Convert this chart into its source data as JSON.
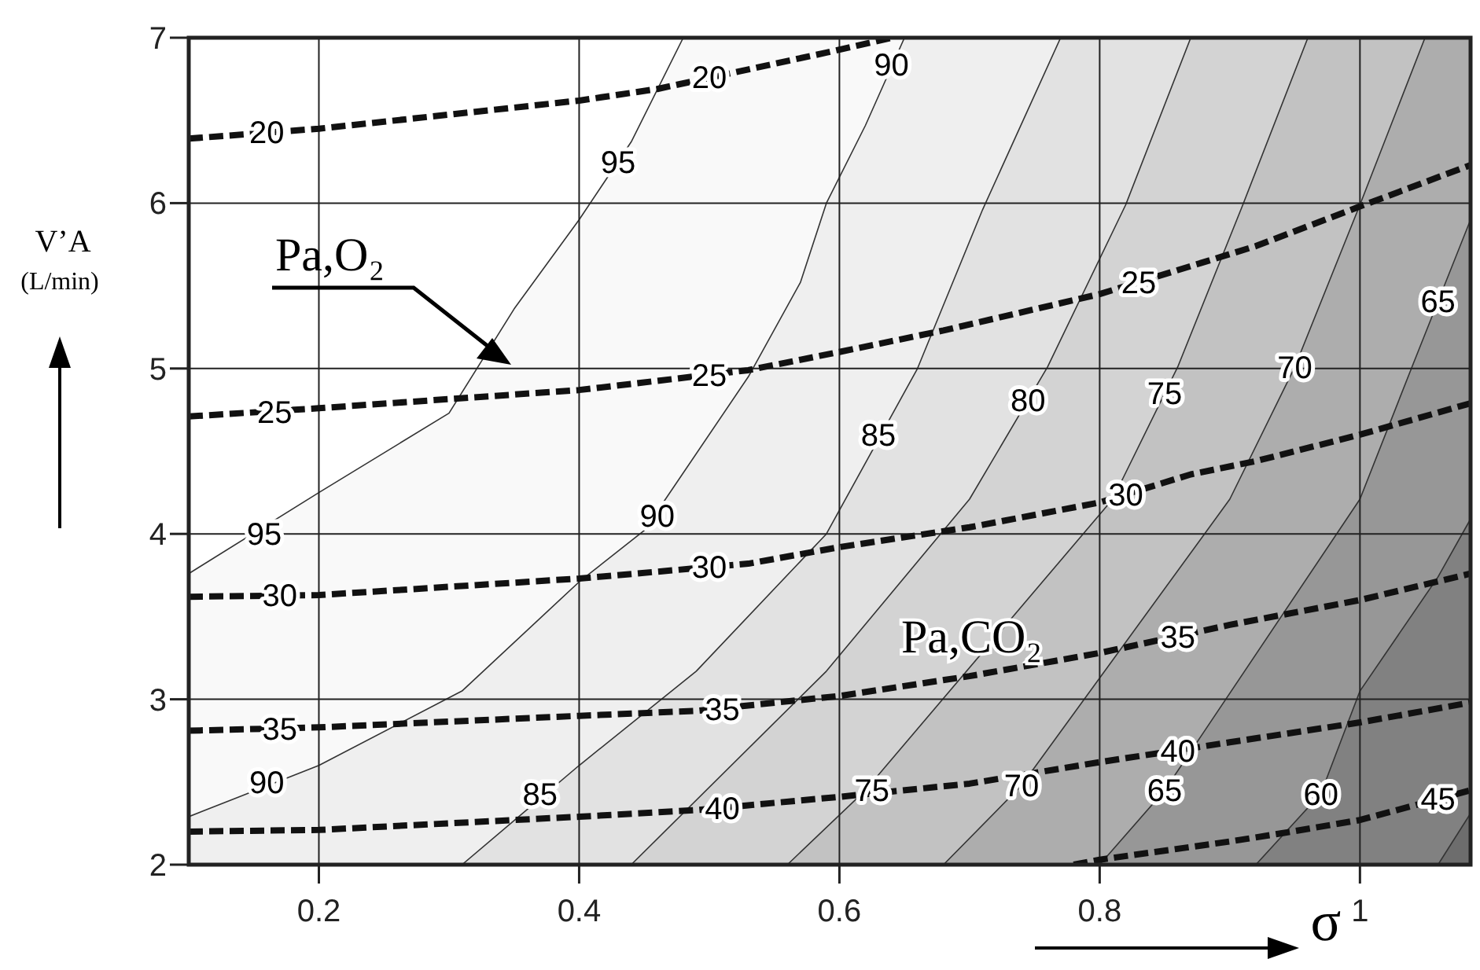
{
  "chart_data": {
    "type": "line",
    "xlabel": "σ",
    "ylabel": "V’A (L/min)",
    "xlim": [
      0.1,
      1.085
    ],
    "ylim": [
      2,
      7
    ],
    "xticks": [
      {
        "value": 0.2,
        "label": "0.2"
      },
      {
        "value": 0.4,
        "label": "0.4"
      },
      {
        "value": 0.6,
        "label": "0.6"
      },
      {
        "value": 0.8,
        "label": "0.8"
      },
      1
    ],
    "yticks": [
      2,
      3,
      4,
      5,
      6,
      7
    ],
    "grid": true,
    "series": [
      {
        "color": "#333333",
        "line_style": "solid",
        "x": [
          0.1,
          0.2,
          0.3,
          0.35,
          0.4,
          0.44,
          0.48
        ],
        "values": [
          3.76,
          4.25,
          4.73,
          5.36,
          5.9,
          6.37,
          7
        ]
      },
      {
        "color": "#333333",
        "line_style": "solid",
        "x": [
          0.1,
          0.2,
          0.31,
          0.4,
          0.45,
          0.53,
          0.57,
          0.59,
          0.62,
          0.65
        ],
        "values": [
          2.29,
          2.6,
          3.05,
          3.71,
          4.02,
          4.95,
          5.52,
          6.0,
          6.47,
          7
        ]
      },
      {
        "color": "#333333",
        "line_style": "solid",
        "x": [
          0.31,
          0.4,
          0.49,
          0.59,
          0.66,
          0.71,
          0.77
        ],
        "values": [
          2,
          2.6,
          3.17,
          4.0,
          5.0,
          5.96,
          7
        ]
      },
      {
        "color": "#333333",
        "line_style": "solid",
        "x": [
          0.44,
          0.59,
          0.7,
          0.76,
          0.82,
          0.87
        ],
        "values": [
          2,
          3.17,
          4.21,
          5.01,
          5.99,
          7
        ]
      },
      {
        "color": "#333333",
        "line_style": "solid",
        "x": [
          0.56,
          0.62,
          0.81,
          0.86,
          0.91,
          0.96
        ],
        "values": [
          2,
          2.45,
          4.21,
          5.01,
          5.99,
          7
        ]
      },
      {
        "color": "#333333",
        "line_style": "solid",
        "x": [
          0.68,
          0.74,
          0.9,
          0.95,
          1.0,
          1.05
        ],
        "values": [
          2,
          2.48,
          4.21,
          5.01,
          5.99,
          7
        ]
      },
      {
        "color": "#333333",
        "line_style": "solid",
        "x": [
          0.8,
          0.85,
          1.0,
          1.04,
          1.085
        ],
        "values": [
          2,
          2.45,
          4.21,
          5.01,
          5.9
        ]
      },
      {
        "color": "#333333",
        "line_style": "solid",
        "x": [
          0.92,
          0.97,
          1.0,
          1.06,
          1.085
        ],
        "values": [
          2,
          2.43,
          3.05,
          3.74,
          4.09
        ]
      },
      {
        "color": "#333333",
        "line_style": "solid",
        "x": [
          1.06,
          1.085
        ],
        "values": [
          2,
          2.31
        ]
      },
      {
        "color": "#111111",
        "line_style": "dashed",
        "x": [
          0.1,
          0.2,
          0.4,
          0.46,
          0.59,
          0.64
        ],
        "values": [
          6.39,
          6.45,
          6.62,
          6.69,
          6.91,
          7.0
        ]
      },
      {
        "color": "#111111",
        "line_style": "dashed",
        "x": [
          0.1,
          0.2,
          0.4,
          0.53,
          0.6,
          0.68,
          0.8,
          0.92,
          1.0,
          1.085
        ],
        "values": [
          4.71,
          4.76,
          4.87,
          4.99,
          5.1,
          5.23,
          5.45,
          5.74,
          5.98,
          6.23
        ]
      },
      {
        "color": "#111111",
        "line_style": "dashed",
        "x": [
          0.1,
          0.2,
          0.4,
          0.53,
          0.6,
          0.7,
          0.8,
          0.87,
          0.92,
          1.0,
          1.085
        ],
        "values": [
          3.62,
          3.63,
          3.73,
          3.82,
          3.92,
          4.04,
          4.19,
          4.36,
          4.44,
          4.6,
          4.79
        ]
      },
      {
        "color": "#111111",
        "line_style": "dashed",
        "x": [
          0.1,
          0.2,
          0.4,
          0.49,
          0.6,
          0.7,
          0.8,
          0.9,
          1.0,
          1.085
        ],
        "values": [
          2.81,
          2.83,
          2.9,
          2.93,
          3.02,
          3.14,
          3.28,
          3.45,
          3.6,
          3.76
        ]
      },
      {
        "color": "#111111",
        "line_style": "dashed",
        "x": [
          0.1,
          0.2,
          0.4,
          0.49,
          0.6,
          0.7,
          0.8,
          0.9,
          1.0,
          1.085
        ],
        "values": [
          2.2,
          2.21,
          2.29,
          2.33,
          2.41,
          2.49,
          2.62,
          2.74,
          2.86,
          2.98
        ]
      },
      {
        "color": "#111111",
        "line_style": "dashed",
        "x": [
          0.78,
          0.8,
          0.9,
          0.94,
          1.0,
          1.085
        ],
        "values": [
          2.0,
          2.03,
          2.14,
          2.19,
          2.27,
          2.45
        ]
      }
    ],
    "annotations": [
      "Pa,O₂",
      "Pa,CO₂",
      {
        "text": "95",
        "x": 0.158,
        "y": 4.0
      },
      {
        "text": "95",
        "x": 0.43,
        "y": 6.25
      },
      {
        "text": "90",
        "x": 0.16,
        "y": 2.5
      },
      {
        "text": "90",
        "x": 0.46,
        "y": 4.11
      },
      {
        "text": "90",
        "x": 0.64,
        "y": 6.84
      },
      {
        "text": "85",
        "x": 0.37,
        "y": 2.43
      },
      {
        "text": "85",
        "x": 0.63,
        "y": 4.6
      },
      {
        "text": "80",
        "x": 0.745,
        "y": 4.81
      },
      {
        "text": "75",
        "x": 0.625,
        "y": 2.45
      },
      {
        "text": "75",
        "x": 0.85,
        "y": 4.85
      },
      {
        "text": "70",
        "x": 0.74,
        "y": 2.48
      },
      {
        "text": "70",
        "x": 0.95,
        "y": 5.01
      },
      {
        "text": "65",
        "x": 0.85,
        "y": 2.45
      },
      {
        "text": "65",
        "x": 1.06,
        "y": 5.41
      },
      {
        "text": "60",
        "x": 0.97,
        "y": 2.43
      },
      {
        "text": "20",
        "x": 0.16,
        "y": 6.43
      },
      {
        "text": "20",
        "x": 0.5,
        "y": 6.76
      },
      {
        "text": "25",
        "x": 0.166,
        "y": 4.74
      },
      {
        "text": "25",
        "x": 0.5,
        "y": 4.96
      },
      {
        "text": "25",
        "x": 0.83,
        "y": 5.52
      },
      {
        "text": "30",
        "x": 0.17,
        "y": 3.63
      },
      {
        "text": "30",
        "x": 0.5,
        "y": 3.8
      },
      {
        "text": "30",
        "x": 0.82,
        "y": 4.24
      },
      {
        "text": "35",
        "x": 0.17,
        "y": 2.82
      },
      {
        "text": "35",
        "x": 0.51,
        "y": 2.94
      },
      {
        "text": "35",
        "x": 0.86,
        "y": 3.38
      },
      {
        "text": "40",
        "x": 0.51,
        "y": 2.34
      },
      {
        "text": "40",
        "x": 0.86,
        "y": 2.69
      },
      {
        "text": "45",
        "x": 1.06,
        "y": 2.4
      }
    ]
  }
}
